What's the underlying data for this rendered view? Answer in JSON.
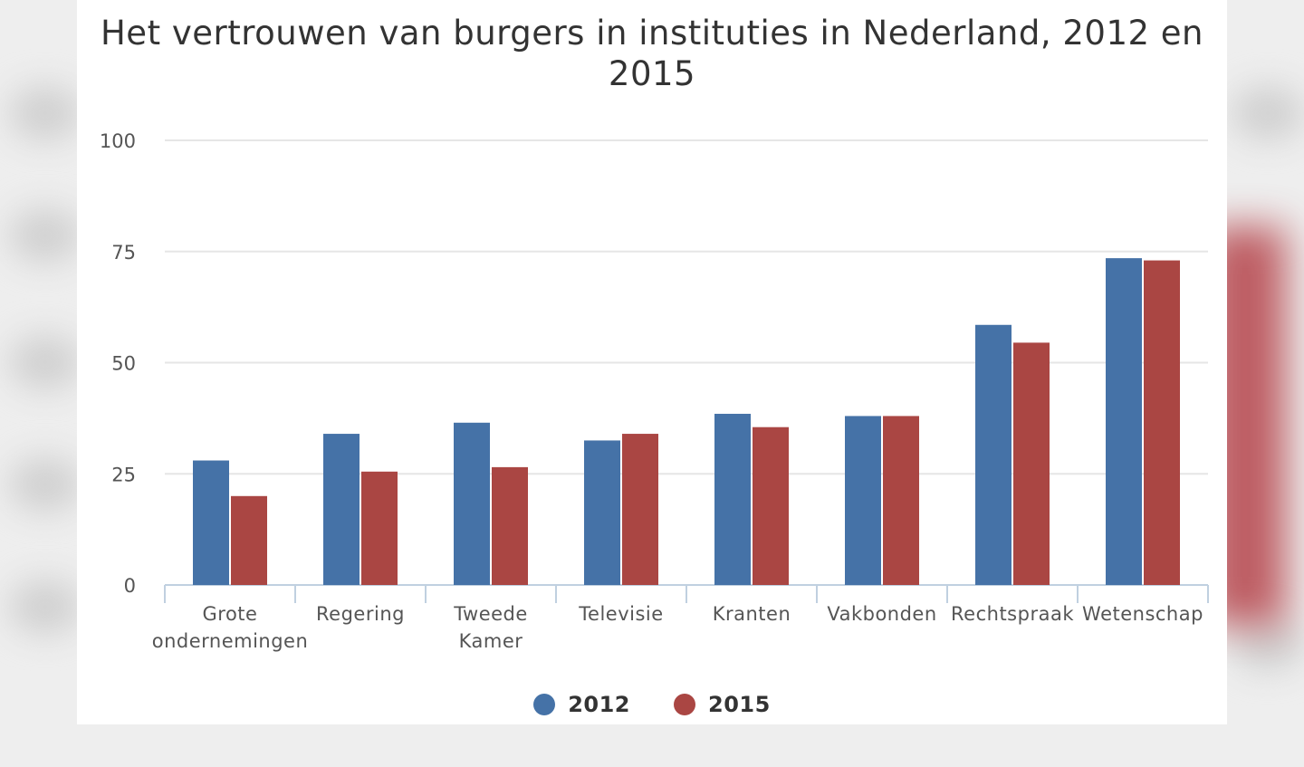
{
  "colors": {
    "series_2012": "#4572a7",
    "series_2015": "#aa4643",
    "grid": "#e6e6e6",
    "axis": "#c0d0e0"
  },
  "chart_data": {
    "type": "bar",
    "title": "Het vertrouwen van burgers in instituties in Nederland, 2012 en 2015",
    "xlabel": "",
    "ylabel": "",
    "ylim": [
      0,
      100
    ],
    "yticks": [
      0,
      25,
      50,
      75,
      100
    ],
    "grid": true,
    "legend_position": "bottom-center",
    "categories": [
      [
        "Grote",
        "ondernemingen"
      ],
      [
        "Regering"
      ],
      [
        "Tweede",
        "Kamer"
      ],
      [
        "Televisie"
      ],
      [
        "Kranten"
      ],
      [
        "Vakbonden"
      ],
      [
        "Rechtspraak"
      ],
      [
        "Wetenschap"
      ]
    ],
    "series": [
      {
        "name": "2012",
        "values": [
          28,
          34,
          36.5,
          32.5,
          38.5,
          38,
          58.5,
          73.5
        ]
      },
      {
        "name": "2015",
        "values": [
          20,
          25.5,
          26.5,
          34,
          35.5,
          38,
          54.5,
          73
        ]
      }
    ]
  }
}
